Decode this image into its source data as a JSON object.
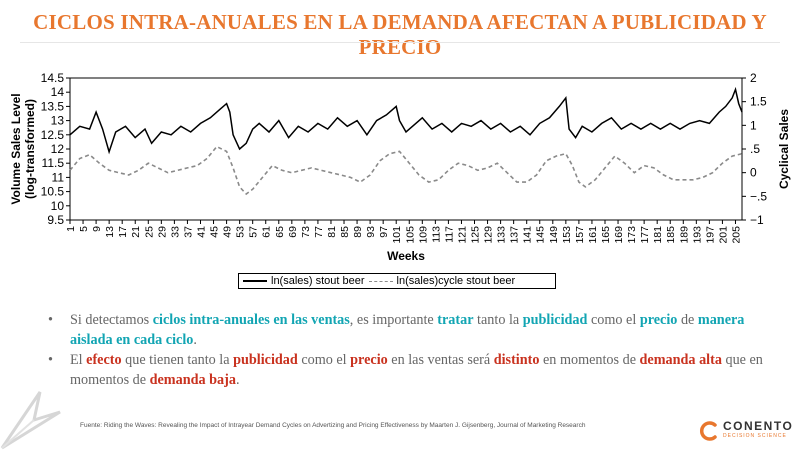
{
  "title": "CICLOS INTRA-ANUALES EN LA DEMANDA AFECTAN A PUBLICIDAD Y PRECIO",
  "colors": {
    "title": "#e8772e",
    "teal": "#12a5b3",
    "red": "#c9321f",
    "text": "#666666"
  },
  "chart_data": {
    "type": "line",
    "title": "",
    "xlabel": "Weeks",
    "ylabel_left": [
      "Volume Sales Level",
      "(log-transformed)"
    ],
    "ylabel_right": "Cyclical Sales",
    "ylim_left": [
      9.5,
      14.5
    ],
    "ylim_right": [
      -1,
      2
    ],
    "yticks_left": [
      "9.5",
      "10",
      "10.5",
      "11",
      "11.5",
      "12",
      "12.5",
      "13",
      "13.5",
      "14",
      "14.5"
    ],
    "yticks_right": [
      "−1",
      "−.5",
      "0",
      ".5",
      "1",
      "1.5",
      "2"
    ],
    "xticks": [
      "1",
      "5",
      "9",
      "13",
      "17",
      "21",
      "25",
      "29",
      "33",
      "37",
      "41",
      "45",
      "49",
      "53",
      "57",
      "61",
      "65",
      "69",
      "73",
      "77",
      "81",
      "85",
      "89",
      "93",
      "97",
      "101",
      "105",
      "109",
      "113",
      "117",
      "121",
      "125",
      "129",
      "133",
      "137",
      "141",
      "145",
      "149",
      "153",
      "157",
      "161",
      "165",
      "169",
      "173",
      "177",
      "181",
      "185",
      "189",
      "193",
      "197",
      "201",
      "205"
    ],
    "grid": false,
    "legend": "bottom",
    "series": [
      {
        "name": "ln(sales) stout beer",
        "axis": "left",
        "x": [
          1,
          4,
          7,
          9,
          11,
          13,
          15,
          18,
          21,
          24,
          26,
          29,
          32,
          35,
          38,
          41,
          44,
          47,
          49,
          50,
          51,
          53,
          55,
          57,
          59,
          62,
          65,
          68,
          71,
          74,
          77,
          80,
          83,
          86,
          89,
          92,
          95,
          98,
          101,
          102,
          104,
          106,
          109,
          112,
          115,
          118,
          121,
          124,
          127,
          130,
          133,
          136,
          139,
          142,
          145,
          148,
          151,
          153,
          154,
          156,
          158,
          161,
          164,
          167,
          170,
          173,
          176,
          179,
          182,
          185,
          188,
          191,
          194,
          197,
          200,
          202,
          204,
          205,
          206,
          207
        ],
        "values": [
          12.5,
          12.8,
          12.7,
          13.3,
          12.7,
          11.9,
          12.6,
          12.8,
          12.4,
          12.7,
          12.2,
          12.6,
          12.5,
          12.8,
          12.6,
          12.9,
          13.1,
          13.4,
          13.6,
          13.3,
          12.5,
          12.0,
          12.2,
          12.7,
          12.9,
          12.6,
          13.0,
          12.4,
          12.8,
          12.6,
          12.9,
          12.7,
          13.1,
          12.8,
          13.0,
          12.5,
          13.0,
          13.2,
          13.5,
          13.0,
          12.6,
          12.8,
          13.1,
          12.7,
          12.9,
          12.6,
          12.9,
          12.8,
          13.0,
          12.7,
          12.9,
          12.6,
          12.8,
          12.5,
          12.9,
          13.1,
          13.5,
          13.8,
          12.7,
          12.4,
          12.8,
          12.6,
          12.9,
          13.1,
          12.7,
          12.9,
          12.7,
          12.9,
          12.7,
          12.9,
          12.7,
          12.9,
          13.0,
          12.9,
          13.3,
          13.5,
          13.8,
          14.1,
          13.6,
          13.3
        ]
      },
      {
        "name": "ln(sales)cycle stout beer",
        "axis": "right",
        "x": [
          1,
          4,
          7,
          10,
          13,
          16,
          19,
          22,
          25,
          28,
          31,
          34,
          37,
          40,
          43,
          46,
          49,
          51,
          53,
          55,
          57,
          60,
          63,
          66,
          69,
          72,
          75,
          78,
          81,
          84,
          87,
          90,
          93,
          96,
          99,
          102,
          105,
          108,
          111,
          114,
          117,
          120,
          123,
          126,
          129,
          132,
          135,
          138,
          141,
          144,
          147,
          150,
          153,
          155,
          157,
          159,
          162,
          165,
          168,
          171,
          174,
          177,
          180,
          183,
          186,
          189,
          192,
          195,
          198,
          201,
          204,
          207
        ],
        "values": [
          0.05,
          0.3,
          0.38,
          0.2,
          0.05,
          0.0,
          -0.05,
          0.05,
          0.2,
          0.1,
          0.0,
          0.05,
          0.1,
          0.15,
          0.3,
          0.55,
          0.45,
          0.1,
          -0.3,
          -0.45,
          -0.35,
          -0.1,
          0.15,
          0.05,
          0.0,
          0.05,
          0.1,
          0.05,
          0.0,
          -0.05,
          -0.1,
          -0.2,
          -0.05,
          0.25,
          0.4,
          0.45,
          0.2,
          -0.05,
          -0.2,
          -0.15,
          0.05,
          0.2,
          0.15,
          0.05,
          0.1,
          0.2,
          0.0,
          -0.2,
          -0.2,
          -0.05,
          0.25,
          0.35,
          0.4,
          0.15,
          -0.2,
          -0.3,
          -0.15,
          0.1,
          0.35,
          0.2,
          0.0,
          0.15,
          0.1,
          -0.05,
          -0.15,
          -0.15,
          -0.15,
          -0.1,
          0.0,
          0.2,
          0.35,
          0.4
        ]
      }
    ]
  },
  "bullets": [
    [
      {
        "t": "Si detectamos ",
        "s": ""
      },
      {
        "t": "ciclos intra-anuales en las ventas",
        "s": "teal"
      },
      {
        "t": ", es importante ",
        "s": ""
      },
      {
        "t": "tratar",
        "s": "teal"
      },
      {
        "t": " tanto la ",
        "s": ""
      },
      {
        "t": "publicidad",
        "s": "teal"
      },
      {
        "t": " como el ",
        "s": ""
      },
      {
        "t": "precio",
        "s": "teal"
      },
      {
        "t": " de ",
        "s": ""
      },
      {
        "t": "manera aislada en cada ciclo",
        "s": "teal"
      },
      {
        "t": ".",
        "s": ""
      }
    ],
    [
      {
        "t": "El ",
        "s": ""
      },
      {
        "t": "efecto",
        "s": "red"
      },
      {
        "t": " que tienen tanto la ",
        "s": ""
      },
      {
        "t": "publicidad",
        "s": "red"
      },
      {
        "t": " como el ",
        "s": ""
      },
      {
        "t": "precio",
        "s": "red"
      },
      {
        "t": " en las ventas será ",
        "s": ""
      },
      {
        "t": "distinto",
        "s": "red"
      },
      {
        "t": " en momentos de ",
        "s": ""
      },
      {
        "t": "demanda alta",
        "s": "red"
      },
      {
        "t": " que en momentos de ",
        "s": ""
      },
      {
        "t": "demanda baja",
        "s": "red"
      },
      {
        "t": ".",
        "s": ""
      }
    ]
  ],
  "source": "Fuente: Riding the Waves: Revealing the Impact of Intrayear Demand Cycles on Advertizing and Pricing Effectiveness by Maarten J. Gijsenberg, Journal of Marketing Research",
  "logo": {
    "name": "CONENTO",
    "sub": "DECISION SCIENCE",
    "icon": "conento-logo-icon"
  },
  "decoration_icon": "paper-plane-icon"
}
